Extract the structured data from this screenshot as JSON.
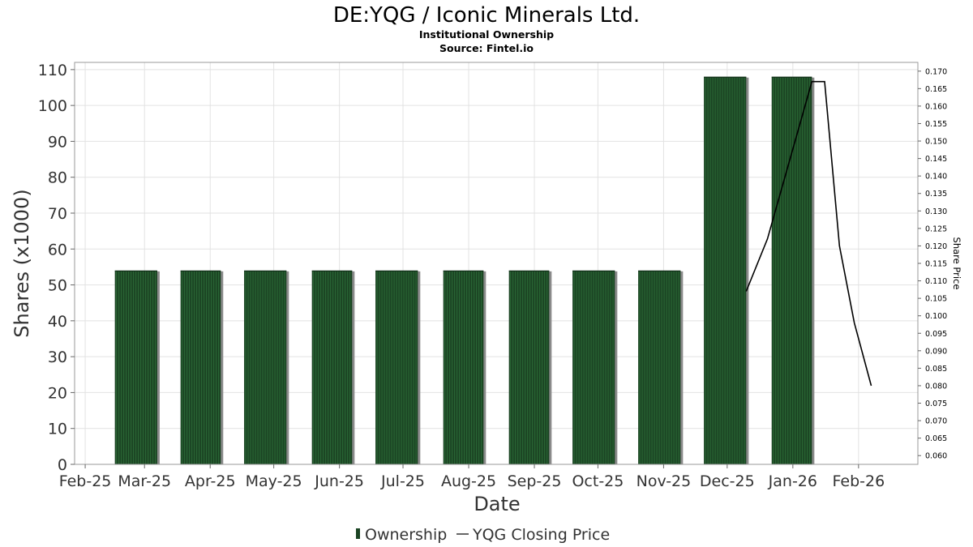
{
  "chart_data": {
    "type": "bar",
    "title": "DE:YQG / Iconic Minerals Ltd.",
    "subtitle_lines": [
      "Institutional Ownership",
      "Source: Fintel.io"
    ],
    "xlabel": "Date",
    "ylabel": "Shares (x1000)",
    "y2label": "Share Price",
    "ylim": [
      0,
      112
    ],
    "y_ticks": [
      0,
      10,
      20,
      30,
      40,
      50,
      60,
      70,
      80,
      90,
      100,
      110
    ],
    "y2lim": [
      0.0575,
      0.1725
    ],
    "y2_ticks": [
      "0.060",
      "0.065",
      "0.070",
      "0.075",
      "0.080",
      "0.085",
      "0.090",
      "0.095",
      "0.100",
      "0.105",
      "0.110",
      "0.115",
      "0.120",
      "0.125",
      "0.130",
      "0.135",
      "0.140",
      "0.145",
      "0.150",
      "0.155",
      "0.160",
      "0.165",
      "0.170"
    ],
    "x_range": [
      "2025-01-27",
      "2026-03-01"
    ],
    "x_ticks": [
      {
        "label": "Feb-25",
        "date": "2025-02-01"
      },
      {
        "label": "Mar-25",
        "date": "2025-03-01"
      },
      {
        "label": "Apr-25",
        "date": "2025-04-01"
      },
      {
        "label": "May-25",
        "date": "2025-05-01"
      },
      {
        "label": "Jun-25",
        "date": "2025-06-01"
      },
      {
        "label": "Jul-25",
        "date": "2025-07-01"
      },
      {
        "label": "Aug-25",
        "date": "2025-08-01"
      },
      {
        "label": "Sep-25",
        "date": "2025-09-01"
      },
      {
        "label": "Oct-25",
        "date": "2025-10-01"
      },
      {
        "label": "Nov-25",
        "date": "2025-11-01"
      },
      {
        "label": "Dec-25",
        "date": "2025-12-01"
      },
      {
        "label": "Jan-26",
        "date": "2026-01-01"
      },
      {
        "label": "Feb-26",
        "date": "2026-02-01"
      }
    ],
    "series": [
      {
        "name": "Ownership",
        "kind": "bar",
        "color": "#1b4423",
        "bars": [
          {
            "start": "2025-02-15",
            "end": "2025-03-07",
            "value": 54
          },
          {
            "start": "2025-03-18",
            "end": "2025-04-06",
            "value": 54
          },
          {
            "start": "2025-04-17",
            "end": "2025-05-07",
            "value": 54
          },
          {
            "start": "2025-05-19",
            "end": "2025-06-07",
            "value": 54
          },
          {
            "start": "2025-06-18",
            "end": "2025-07-08",
            "value": 54
          },
          {
            "start": "2025-07-20",
            "end": "2025-08-08",
            "value": 54
          },
          {
            "start": "2025-08-20",
            "end": "2025-09-08",
            "value": 54
          },
          {
            "start": "2025-09-19",
            "end": "2025-10-09",
            "value": 54
          },
          {
            "start": "2025-10-20",
            "end": "2025-11-09",
            "value": 54
          },
          {
            "start": "2025-11-20",
            "end": "2025-12-10",
            "value": 108
          },
          {
            "start": "2025-12-22",
            "end": "2026-01-10",
            "value": 108
          }
        ]
      },
      {
        "name": "YQG Closing Price",
        "kind": "line",
        "axis": "right",
        "color": "#000000",
        "points": [
          {
            "date": "2025-12-10",
            "value": 0.107
          },
          {
            "date": "2025-12-20",
            "value": 0.122
          },
          {
            "date": "2026-01-10",
            "value": 0.167
          },
          {
            "date": "2026-01-16",
            "value": 0.167
          },
          {
            "date": "2026-01-23",
            "value": 0.12
          },
          {
            "date": "2026-01-30",
            "value": 0.098
          },
          {
            "date": "2026-02-07",
            "value": 0.08
          }
        ]
      }
    ],
    "grid": true,
    "legend_position": "bottom-center"
  }
}
